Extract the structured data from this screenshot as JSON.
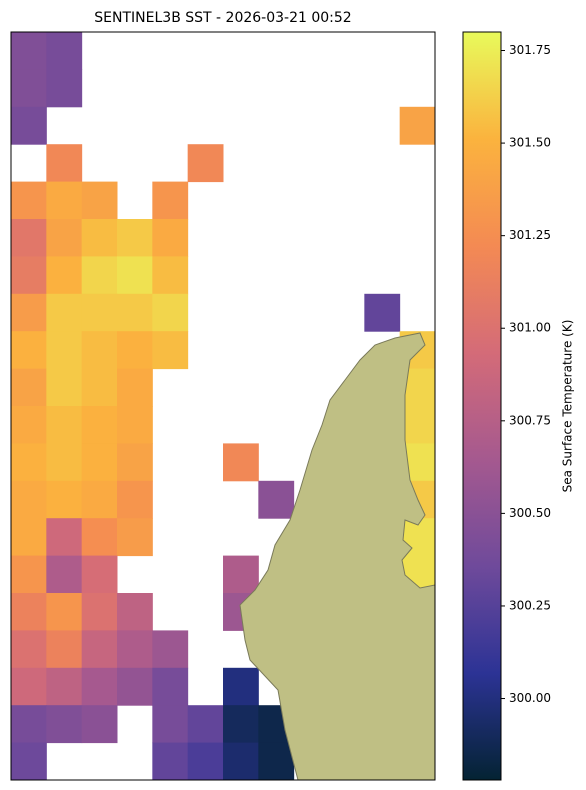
{
  "chart_data": {
    "type": "heatmap",
    "title": "SENTINEL3B SST - 2026-03-21 00:52",
    "colorbar_label": "Sea Surface Temperature (K)",
    "colormap": [
      "#042333",
      "#2c3395",
      "#6f4a9b",
      "#a5598f",
      "#d46b78",
      "#f48a53",
      "#fbb33e",
      "#e8fa5b"
    ],
    "land_color": "#bfbf84",
    "values": [
      [
        300.45,
        300.4,
        null,
        null,
        null,
        null,
        null,
        null,
        null,
        null,
        null,
        null
      ],
      [
        300.45,
        300.4,
        null,
        null,
        null,
        null,
        null,
        null,
        null,
        null,
        null,
        null
      ],
      [
        300.4,
        null,
        null,
        null,
        null,
        null,
        null,
        null,
        null,
        null,
        null,
        301.4
      ],
      [
        null,
        301.2,
        null,
        null,
        null,
        301.2,
        null,
        null,
        null,
        null,
        null,
        null
      ],
      [
        301.3,
        301.45,
        301.4,
        null,
        301.3,
        null,
        null,
        null,
        null,
        null,
        null,
        null
      ],
      [
        301.05,
        301.4,
        301.55,
        301.6,
        301.45,
        null,
        null,
        null,
        null,
        null,
        null,
        null
      ],
      [
        301.1,
        301.5,
        301.65,
        301.7,
        301.55,
        null,
        null,
        null,
        null,
        null,
        null,
        null
      ],
      [
        301.35,
        301.6,
        301.6,
        301.6,
        301.65,
        null,
        null,
        null,
        null,
        null,
        300.3,
        null
      ],
      [
        301.5,
        301.6,
        301.55,
        301.5,
        301.55,
        null,
        null,
        null,
        null,
        null,
        null,
        301.6
      ],
      [
        301.4,
        301.6,
        301.55,
        301.45,
        null,
        null,
        null,
        null,
        null,
        null,
        null,
        301.65
      ],
      [
        301.45,
        301.55,
        301.5,
        301.45,
        null,
        null,
        null,
        null,
        null,
        null,
        null,
        301.65
      ],
      [
        301.5,
        301.55,
        301.5,
        301.4,
        null,
        null,
        301.2,
        null,
        null,
        null,
        null,
        301.7
      ],
      [
        301.45,
        301.5,
        301.45,
        301.3,
        null,
        null,
        null,
        300.5,
        null,
        null,
        null,
        301.6
      ],
      [
        301.45,
        300.9,
        301.25,
        301.35,
        null,
        null,
        null,
        null,
        null,
        null,
        null,
        301.7
      ],
      [
        301.3,
        300.7,
        300.95,
        null,
        null,
        null,
        300.7,
        null,
        null,
        null,
        null,
        301.7
      ],
      [
        301.15,
        301.3,
        301.0,
        300.8,
        null,
        null,
        300.6,
        null,
        null,
        null,
        null,
        null
      ],
      [
        301.0,
        301.15,
        300.85,
        300.7,
        300.6,
        null,
        null,
        null,
        null,
        null,
        null,
        null
      ],
      [
        300.9,
        300.8,
        300.65,
        300.55,
        300.4,
        null,
        300.0,
        null,
        null,
        null,
        null,
        null
      ],
      [
        300.4,
        300.45,
        300.5,
        null,
        300.4,
        300.3,
        299.9,
        299.85,
        null,
        null,
        null,
        null
      ],
      [
        300.35,
        null,
        null,
        null,
        300.3,
        300.2,
        299.95,
        299.85,
        null,
        null,
        null,
        null
      ]
    ],
    "clim": [
      299.78,
      301.8
    ],
    "cticks": [
      {
        "value": 300.0,
        "label": "300.00"
      },
      300.25,
      {
        "value": 300.5,
        "label": "300.50"
      },
      300.75,
      {
        "value": 301.0,
        "label": "301.00"
      },
      301.25,
      {
        "value": 301.5,
        "label": "301.50"
      },
      301.75
    ]
  }
}
